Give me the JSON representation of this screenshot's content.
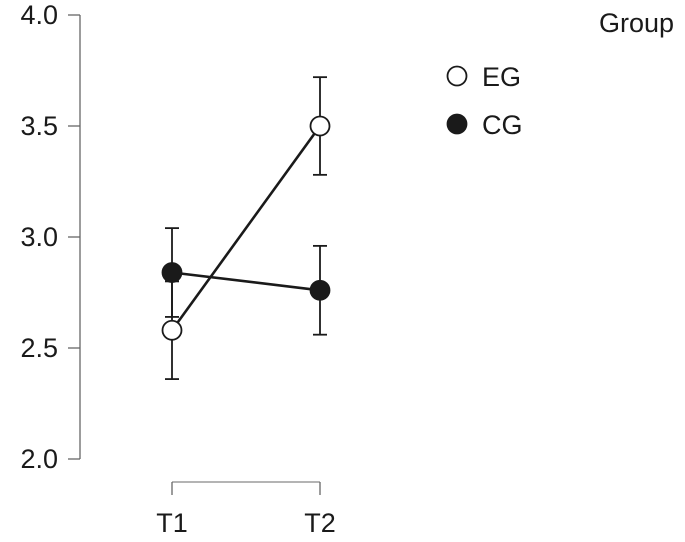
{
  "chart_data": {
    "type": "line",
    "categories": [
      "T1",
      "T2"
    ],
    "series": [
      {
        "name": "EG",
        "marker": "open-circle",
        "values": [
          2.58,
          3.5
        ],
        "error_low": [
          2.36,
          3.28
        ],
        "error_high": [
          2.8,
          3.72
        ]
      },
      {
        "name": "CG",
        "marker": "filled-circle",
        "values": [
          2.84,
          2.76
        ],
        "error_low": [
          2.64,
          2.56
        ],
        "error_high": [
          3.04,
          2.96
        ]
      }
    ],
    "y_ticks": [
      "2.0",
      "2.5",
      "3.0",
      "3.5",
      "4.0"
    ],
    "ylim": [
      2.0,
      4.0
    ],
    "legend": {
      "title": "Group",
      "position": "top-right"
    },
    "title": "",
    "xlabel": "",
    "ylabel": "",
    "grid": false
  },
  "colors": {
    "line": "#1a1a1a",
    "background": "#ffffff"
  }
}
